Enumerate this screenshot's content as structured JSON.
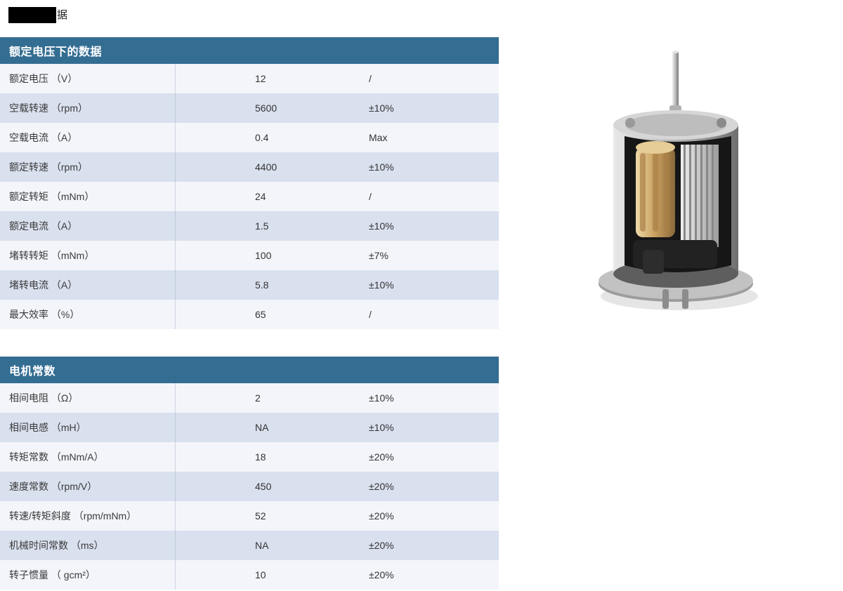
{
  "page": {
    "badge_visible_text": "据",
    "badge_redacted_block": true
  },
  "colors": {
    "table_header_bg": "#346d92",
    "row_light": "#f3f5fa",
    "row_alt": "#d9e0ee",
    "badge_bg": "#000000",
    "text": "#333333"
  },
  "tables": [
    {
      "title": "额定电压下的数据",
      "rows": [
        {
          "label": "额定电压 （V）",
          "value": "12",
          "tolerance": "/"
        },
        {
          "label": "空载转速 （rpm）",
          "value": "5600",
          "tolerance": "±10%"
        },
        {
          "label": "空载电流 （A）",
          "value": "0.4",
          "tolerance": "Max"
        },
        {
          "label": "额定转速 （rpm）",
          "value": "4400",
          "tolerance": "±10%"
        },
        {
          "label": "额定转矩 （mNm）",
          "value": "24",
          "tolerance": "/"
        },
        {
          "label": "额定电流 （A）",
          "value": "1.5",
          "tolerance": "±10%"
        },
        {
          "label": "堵转转矩 （mNm）",
          "value": "100",
          "tolerance": "±7%"
        },
        {
          "label": "堵转电流 （A）",
          "value": "5.8",
          "tolerance": "±10%"
        },
        {
          "label": "最大效率 （%）",
          "value": "65",
          "tolerance": "/"
        }
      ]
    },
    {
      "title": "电机常数",
      "rows": [
        {
          "label": "相间电阻 （Ω）",
          "value": "2",
          "tolerance": "±10%"
        },
        {
          "label": "相间电感 （mH）",
          "value": "NA",
          "tolerance": "±10%"
        },
        {
          "label": "转矩常数 （mNm/A）",
          "value": "18",
          "tolerance": "±20%"
        },
        {
          "label": "速度常数 （rpm/V）",
          "value": "450",
          "tolerance": "±20%"
        },
        {
          "label": "转速/转矩斜度 （rpm/mNm）",
          "value": "52",
          "tolerance": "±20%"
        },
        {
          "label": "机械时间常数 （ms）",
          "value": "NA",
          "tolerance": "±20%"
        },
        {
          "label": "转子惯量 （ gcm²）",
          "value": "10",
          "tolerance": "±20%"
        }
      ]
    }
  ],
  "image": {
    "description": "motor-cutaway-illustration"
  }
}
